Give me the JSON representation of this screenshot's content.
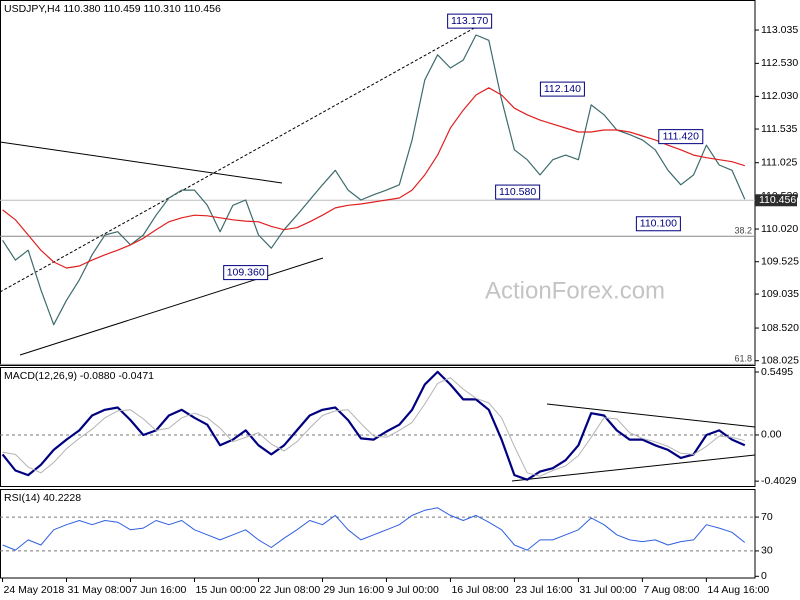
{
  "chart_data": [
    {
      "type": "line",
      "title": "USDJPY,H4 110.380 110.459 110.310 110.456",
      "watermark": "ActionForex.com",
      "x": [
        0,
        2,
        4,
        6,
        8,
        10,
        12,
        14,
        16,
        18,
        20,
        22,
        24,
        26,
        28,
        30,
        32,
        34,
        36,
        38,
        40,
        42,
        44,
        46,
        48,
        50,
        52,
        54,
        56,
        58,
        60,
        62,
        64,
        66,
        68,
        70,
        72,
        74,
        76,
        78,
        80,
        82,
        84,
        86,
        88,
        90,
        92,
        94,
        96,
        98,
        100,
        102,
        104,
        106,
        108,
        110,
        112,
        114,
        116
      ],
      "xlim": [
        -0.4,
        117.6
      ],
      "xticks": [
        {
          "value": 0,
          "label": "24 May 2018"
        },
        {
          "value": 10,
          "label": "31 May 08:00"
        },
        {
          "value": 20,
          "label": "7 Jun 16:00"
        },
        {
          "value": 30,
          "label": "15 Jun 00:00"
        },
        {
          "value": 40,
          "label": "22 Jun 08:00"
        },
        {
          "value": 50,
          "label": "29 Jun 16:00"
        },
        {
          "value": 60,
          "label": "9 Jul 00:00"
        },
        {
          "value": 70,
          "label": "16 Jul 08:00"
        },
        {
          "value": 80,
          "label": "23 Jul 16:00"
        },
        {
          "value": 90,
          "label": "31 Jul 00:00"
        },
        {
          "value": 100,
          "label": "7 Aug 08:00"
        },
        {
          "value": 110,
          "label": "14 Aug 16:00"
        }
      ],
      "ylim": [
        107.96,
        113.49
      ],
      "yticks": [
        113.035,
        {
          "value": 112.53,
          "label": "112.530"
        },
        {
          "value": 112.03,
          "label": "112.030"
        },
        111.535,
        111.025,
        {
          "value": 110.52,
          "label": "110.520"
        },
        {
          "value": 110.02,
          "label": "110.020"
        },
        109.525,
        109.035,
        {
          "value": 108.52,
          "label": "108.520"
        },
        108.025
      ],
      "series": [
        {
          "name": "Close",
          "color": "#3d6b6b",
          "values": [
            109.85,
            109.55,
            109.7,
            109.1,
            108.57,
            108.94,
            109.25,
            109.63,
            109.93,
            109.98,
            109.78,
            109.93,
            110.23,
            110.49,
            110.61,
            110.61,
            110.38,
            109.98,
            110.38,
            110.46,
            109.93,
            109.73,
            110.01,
            110.23,
            110.46,
            110.69,
            110.91,
            110.61,
            110.46,
            110.54,
            110.61,
            110.69,
            111.37,
            112.28,
            112.66,
            112.46,
            112.58,
            112.96,
            112.88,
            111.98,
            111.22,
            111.07,
            110.84,
            111.07,
            111.14,
            111.07,
            111.9,
            111.75,
            111.52,
            111.45,
            111.37,
            111.22,
            110.91,
            110.69,
            110.84,
            111.29,
            110.99,
            110.91,
            110.47
          ]
        },
        {
          "name": "MA",
          "color": "#e02020",
          "values": [
            110.31,
            110.16,
            109.93,
            109.7,
            109.52,
            109.43,
            109.46,
            109.55,
            109.63,
            109.7,
            109.78,
            109.88,
            110.01,
            110.13,
            110.19,
            110.23,
            110.22,
            110.19,
            110.16,
            110.14,
            110.13,
            110.06,
            110.01,
            110.04,
            110.13,
            110.23,
            110.34,
            110.38,
            110.4,
            110.43,
            110.46,
            110.49,
            110.61,
            110.84,
            111.14,
            111.55,
            111.82,
            112.05,
            112.16,
            112.05,
            111.85,
            111.75,
            111.67,
            111.61,
            111.55,
            111.49,
            111.49,
            111.52,
            111.52,
            111.49,
            111.43,
            111.37,
            111.29,
            111.22,
            111.14,
            111.1,
            111.07,
            111.04,
            110.98
          ]
        }
      ],
      "annotations": [
        {
          "value": 113.17,
          "label": "113.170",
          "x": 73
        },
        {
          "value": 112.14,
          "label": "112.140",
          "x": 87.5
        },
        {
          "value": 111.42,
          "label": "111.420",
          "x": 106
        },
        {
          "value": 110.58,
          "label": "110.580",
          "x": 80.5
        },
        {
          "value": 110.1,
          "label": "110.100",
          "x": 102.5
        },
        {
          "value": 109.36,
          "label": "109.360",
          "x": 38
        }
      ],
      "fib_levels": [
        {
          "value": 109.91,
          "label": "38.2"
        },
        {
          "value": 107.97,
          "label": "61.8"
        }
      ],
      "last_price": 110.456
    },
    {
      "type": "line",
      "title": "MACD(12,26,9) -0.0880 -0.0471",
      "x": [
        0,
        2,
        4,
        6,
        8,
        10,
        12,
        14,
        16,
        18,
        20,
        22,
        24,
        26,
        28,
        30,
        32,
        34,
        36,
        38,
        40,
        42,
        44,
        46,
        48,
        50,
        52,
        54,
        56,
        58,
        60,
        62,
        64,
        66,
        68,
        70,
        72,
        74,
        76,
        78,
        80,
        82,
        84,
        86,
        88,
        90,
        92,
        94,
        96,
        98,
        100,
        102,
        104,
        106,
        108,
        110,
        112,
        114,
        116
      ],
      "xlim": [
        -0.4,
        117.6
      ],
      "ylim": [
        -0.454,
        0.593
      ],
      "yticks": [
        0.5495,
        {
          "value": 0,
          "label": "0.00"
        },
        -0.4029
      ],
      "levels": [
        0
      ],
      "series": [
        {
          "name": "MACD",
          "color": "#000080",
          "width": 2.2,
          "values": [
            -0.17,
            -0.31,
            -0.35,
            -0.26,
            -0.13,
            -0.04,
            0.04,
            0.17,
            0.22,
            0.24,
            0.13,
            0,
            0.04,
            0.17,
            0.22,
            0.15,
            0.09,
            -0.09,
            -0.04,
            0.04,
            -0.09,
            -0.17,
            -0.09,
            0.04,
            0.17,
            0.22,
            0.24,
            0.13,
            -0.03,
            -0.04,
            0.03,
            0.09,
            0.22,
            0.44,
            0.55,
            0.44,
            0.31,
            0.31,
            0.22,
            -0.04,
            -0.35,
            -0.39,
            -0.32,
            -0.29,
            -0.22,
            -0.09,
            0.19,
            0.17,
            0.04,
            -0.04,
            -0.04,
            -0.09,
            -0.13,
            -0.2,
            -0.17,
            0,
            0.04,
            -0.04,
            -0.09
          ]
        },
        {
          "name": "Signal",
          "color": "#b4b4b4",
          "width": 1,
          "values": [
            -0.15,
            -0.17,
            -0.28,
            -0.33,
            -0.24,
            -0.12,
            -0.03,
            0.05,
            0.15,
            0.21,
            0.22,
            0.14,
            0.04,
            0.06,
            0.15,
            0.19,
            0.15,
            0.06,
            -0.06,
            -0.02,
            0.02,
            -0.08,
            -0.14,
            -0.06,
            0.06,
            0.17,
            0.21,
            0.22,
            0.1,
            -0.01,
            -0.02,
            0.04,
            0.11,
            0.27,
            0.45,
            0.5,
            0.4,
            0.32,
            0.28,
            0.15,
            -0.1,
            -0.33,
            -0.36,
            -0.31,
            -0.27,
            -0.18,
            -0.02,
            0.15,
            0.14,
            0.02,
            -0.03,
            -0.06,
            -0.1,
            -0.16,
            -0.17,
            -0.1,
            -0.01,
            -0.02,
            -0.05
          ]
        }
      ]
    },
    {
      "type": "line",
      "title": "RSI(14) 40.2228",
      "x": [
        0,
        2,
        4,
        6,
        8,
        10,
        12,
        14,
        16,
        18,
        20,
        22,
        24,
        26,
        28,
        30,
        32,
        34,
        36,
        38,
        40,
        42,
        44,
        46,
        48,
        50,
        52,
        54,
        56,
        58,
        60,
        62,
        64,
        66,
        68,
        70,
        72,
        74,
        76,
        78,
        80,
        82,
        84,
        86,
        88,
        90,
        92,
        94,
        96,
        98,
        100,
        102,
        104,
        106,
        108,
        110,
        112,
        114,
        116
      ],
      "xlim": [
        -0.4,
        117.6
      ],
      "ylim": [
        -2,
        102
      ],
      "yticks": [
        70,
        30,
        0
      ],
      "levels": [
        70,
        30
      ],
      "series": [
        {
          "name": "RSI",
          "color": "#3060e0",
          "width": 1,
          "values": [
            37,
            31,
            43,
            37,
            55,
            61,
            66,
            61,
            66,
            64,
            55,
            57,
            66,
            61,
            66,
            55,
            49,
            43,
            49,
            55,
            43,
            34,
            45,
            55,
            66,
            61,
            72,
            55,
            43,
            49,
            55,
            61,
            72,
            78,
            81,
            72,
            66,
            72,
            64,
            55,
            37,
            31,
            43,
            43,
            49,
            55,
            69,
            61,
            49,
            43,
            41,
            43,
            37,
            41,
            43,
            61,
            57,
            52,
            40
          ]
        }
      ]
    }
  ]
}
